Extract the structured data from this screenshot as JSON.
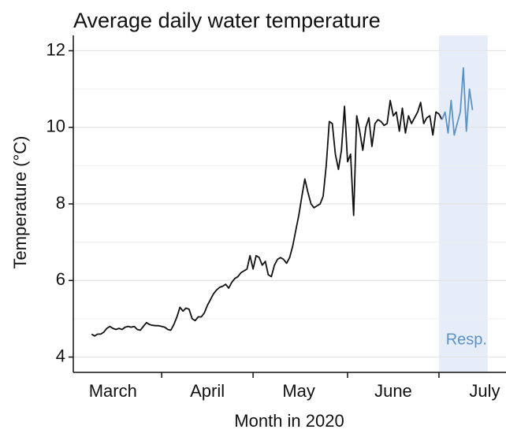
{
  "chart_data": {
    "type": "line",
    "title": "Average daily water temperature",
    "xlabel": "Month in 2020",
    "ylabel": "Temperature (°C)",
    "xlim": [
      63,
      205
    ],
    "xticks": [
      {
        "value": 76,
        "label": "March"
      },
      {
        "value": 107,
        "label": "April"
      },
      {
        "value": 137,
        "label": "May"
      },
      {
        "value": 168,
        "label": "June"
      },
      {
        "value": 198,
        "label": "July"
      }
    ],
    "xtick_marks": [
      92,
      122,
      153,
      183
    ],
    "ylim": [
      3.6,
      12.4
    ],
    "yticks": [
      4,
      6,
      8,
      10,
      12
    ],
    "yminor": [
      5,
      7,
      9,
      11
    ],
    "grid": true,
    "shade": {
      "x": [
        183,
        199
      ],
      "label": "Resp.",
      "color": "#e6edf8",
      "label_color": "#5b93c7"
    },
    "series": [
      {
        "color": "#111111",
        "x": [
          69,
          70,
          71,
          72,
          73,
          74,
          75,
          76,
          77,
          78,
          79,
          80,
          81,
          82,
          83,
          84,
          85,
          86,
          87,
          88,
          89,
          90,
          91,
          92,
          93,
          94,
          95,
          96,
          97,
          98,
          99,
          100,
          101,
          102,
          103,
          104,
          105,
          106,
          107,
          108,
          109,
          110,
          111,
          112,
          113,
          114,
          115,
          116,
          117,
          118,
          119,
          120,
          121,
          122,
          123,
          124,
          125,
          126,
          127,
          128,
          129,
          130,
          131,
          132,
          133,
          134,
          135,
          136,
          137,
          138,
          139,
          140,
          141,
          142,
          143,
          144,
          145,
          146,
          147,
          148,
          149,
          150,
          151,
          152,
          153,
          154,
          155,
          156,
          157,
          158,
          159,
          160,
          161,
          162,
          163,
          164,
          165,
          166,
          167,
          168,
          169,
          170,
          171,
          172,
          173,
          174,
          175,
          176,
          177,
          178,
          179,
          180,
          181,
          182,
          183,
          184
        ],
        "values": [
          4.6,
          4.55,
          4.6,
          4.6,
          4.65,
          4.75,
          4.8,
          4.75,
          4.72,
          4.75,
          4.72,
          4.78,
          4.8,
          4.78,
          4.8,
          4.72,
          4.7,
          4.8,
          4.9,
          4.85,
          4.83,
          4.82,
          4.82,
          4.8,
          4.78,
          4.72,
          4.7,
          4.85,
          5.05,
          5.3,
          5.2,
          5.28,
          5.25,
          5.0,
          4.95,
          5.05,
          5.05,
          5.15,
          5.35,
          5.5,
          5.65,
          5.75,
          5.82,
          5.85,
          5.9,
          5.8,
          5.95,
          6.05,
          6.1,
          6.2,
          6.25,
          6.3,
          6.65,
          6.3,
          6.65,
          6.6,
          6.4,
          6.5,
          6.15,
          6.1,
          6.4,
          6.55,
          6.6,
          6.55,
          6.45,
          6.6,
          6.9,
          7.3,
          7.7,
          8.2,
          8.65,
          8.3,
          8.0,
          7.9,
          7.95,
          8.0,
          8.2,
          9.0,
          10.15,
          10.1,
          9.3,
          8.9,
          9.4,
          10.55,
          9.1,
          9.3,
          7.7,
          10.3,
          9.9,
          9.4,
          10.0,
          10.25,
          9.5,
          10.1,
          10.2,
          10.15,
          10.05,
          10.1,
          10.7,
          10.3,
          10.4,
          9.9,
          10.5,
          9.85,
          10.3,
          10.1,
          10.25,
          10.4,
          10.65,
          10.1,
          10.25,
          10.3,
          9.8,
          10.4,
          10.35,
          10.2
        ]
      },
      {
        "color": "#5b93c7",
        "x": [
          184,
          185,
          186,
          187,
          188,
          189,
          190,
          191,
          192,
          193,
          194
        ],
        "values": [
          10.2,
          10.4,
          9.85,
          10.7,
          9.8,
          10.1,
          10.4,
          11.55,
          9.9,
          11.0,
          10.45
        ]
      }
    ]
  }
}
